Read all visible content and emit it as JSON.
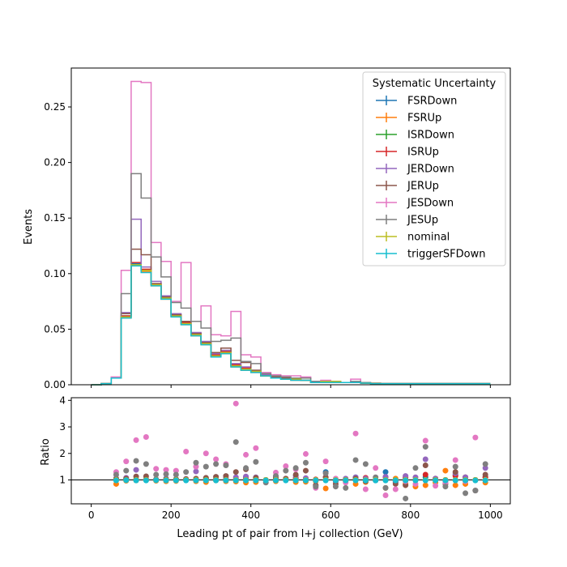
{
  "chart_data": [
    {
      "type": "line",
      "drawstyle": "steps",
      "ylabel": "Events",
      "ylim": [
        0,
        0.285
      ],
      "xlim": [
        -50,
        1050
      ],
      "yticks": [
        0.0,
        0.05,
        0.1,
        0.15,
        0.2,
        0.25
      ],
      "ytick_labels": [
        "0.00",
        "0.05",
        "0.10",
        "0.15",
        "0.20",
        "0.25"
      ],
      "legend_title": "Systematic Uncertainty",
      "legend_position": "upper right",
      "bin_edges": [
        0,
        25,
        50,
        75,
        100,
        125,
        150,
        175,
        200,
        225,
        250,
        275,
        300,
        325,
        350,
        375,
        400,
        425,
        450,
        475,
        500,
        525,
        550,
        575,
        600,
        625,
        650,
        675,
        700,
        725,
        750,
        775,
        800,
        825,
        850,
        875,
        900,
        925,
        950,
        975,
        1000
      ],
      "series": [
        {
          "name": "FSRDown",
          "color": "#1f77b4",
          "values": [
            0.0,
            0.001,
            0.006,
            0.062,
            0.109,
            0.103,
            0.09,
            0.078,
            0.062,
            0.055,
            0.045,
            0.037,
            0.026,
            0.029,
            0.017,
            0.014,
            0.012,
            0.008,
            0.006,
            0.005,
            0.005,
            0.004,
            0.002,
            0.003,
            0.003,
            0.002,
            0.002,
            0.0015,
            0.0012,
            0.001,
            0.001,
            0.001,
            0.001,
            0.001,
            0.001,
            0.001,
            0.001,
            0.001,
            0.001,
            0.001
          ]
        },
        {
          "name": "FSRUp",
          "color": "#ff7f0e",
          "values": [
            0.0,
            0.001,
            0.006,
            0.06,
            0.107,
            0.102,
            0.089,
            0.077,
            0.061,
            0.054,
            0.044,
            0.036,
            0.025,
            0.028,
            0.016,
            0.013,
            0.011,
            0.008,
            0.006,
            0.005,
            0.004,
            0.004,
            0.002,
            0.002,
            0.002,
            0.002,
            0.002,
            0.0015,
            0.001,
            0.001,
            0.001,
            0.001,
            0.001,
            0.001,
            0.001,
            0.001,
            0.001,
            0.001,
            0.001,
            0.001
          ]
        },
        {
          "name": "ISRDown",
          "color": "#2ca02c",
          "values": [
            0.0,
            0.001,
            0.006,
            0.061,
            0.108,
            0.103,
            0.09,
            0.078,
            0.062,
            0.055,
            0.045,
            0.037,
            0.026,
            0.029,
            0.017,
            0.014,
            0.012,
            0.008,
            0.006,
            0.005,
            0.005,
            0.004,
            0.002,
            0.003,
            0.003,
            0.002,
            0.002,
            0.0015,
            0.0012,
            0.001,
            0.001,
            0.001,
            0.001,
            0.001,
            0.001,
            0.001,
            0.001,
            0.001,
            0.001,
            0.001
          ]
        },
        {
          "name": "ISRUp",
          "color": "#d62728",
          "values": [
            0.0,
            0.001,
            0.006,
            0.062,
            0.11,
            0.104,
            0.091,
            0.079,
            0.063,
            0.056,
            0.046,
            0.038,
            0.027,
            0.03,
            0.018,
            0.015,
            0.012,
            0.008,
            0.006,
            0.005,
            0.005,
            0.004,
            0.002,
            0.003,
            0.003,
            0.002,
            0.002,
            0.0015,
            0.0012,
            0.001,
            0.001,
            0.001,
            0.001,
            0.001,
            0.001,
            0.001,
            0.001,
            0.001,
            0.001,
            0.001
          ]
        },
        {
          "name": "JERDown",
          "color": "#9467bd",
          "values": [
            0.0,
            0.001,
            0.006,
            0.065,
            0.149,
            0.106,
            0.093,
            0.08,
            0.064,
            0.057,
            0.047,
            0.039,
            0.028,
            0.031,
            0.019,
            0.016,
            0.013,
            0.009,
            0.007,
            0.006,
            0.005,
            0.004,
            0.002,
            0.003,
            0.003,
            0.002,
            0.002,
            0.0015,
            0.0012,
            0.001,
            0.001,
            0.001,
            0.001,
            0.001,
            0.001,
            0.001,
            0.001,
            0.001,
            0.001,
            0.001
          ]
        },
        {
          "name": "JERUp",
          "color": "#8c564b",
          "values": [
            0.0,
            0.001,
            0.006,
            0.064,
            0.122,
            0.117,
            0.091,
            0.079,
            0.063,
            0.057,
            0.046,
            0.038,
            0.029,
            0.033,
            0.022,
            0.02,
            0.013,
            0.008,
            0.007,
            0.006,
            0.005,
            0.004,
            0.002,
            0.003,
            0.003,
            0.002,
            0.002,
            0.0015,
            0.0012,
            0.001,
            0.001,
            0.001,
            0.001,
            0.001,
            0.001,
            0.001,
            0.001,
            0.001,
            0.001,
            0.001
          ]
        },
        {
          "name": "JESDown",
          "color": "#e377c2",
          "values": [
            0.0,
            0.001,
            0.007,
            0.103,
            0.273,
            0.272,
            0.128,
            0.111,
            0.075,
            0.11,
            0.057,
            0.071,
            0.045,
            0.044,
            0.066,
            0.027,
            0.025,
            0.011,
            0.009,
            0.008,
            0.008,
            0.007,
            0.003,
            0.004,
            0.003,
            0.002,
            0.005,
            0.002,
            0.0015,
            0.001,
            0.001,
            0.001,
            0.001,
            0.001,
            0.001,
            0.001,
            0.001,
            0.001,
            0.001,
            0.001
          ]
        },
        {
          "name": "JESUp",
          "color": "#7f7f7f",
          "values": [
            0.0,
            0.001,
            0.006,
            0.082,
            0.19,
            0.168,
            0.115,
            0.097,
            0.074,
            0.069,
            0.057,
            0.051,
            0.039,
            0.04,
            0.042,
            0.021,
            0.019,
            0.01,
            0.008,
            0.007,
            0.006,
            0.006,
            0.003,
            0.003,
            0.003,
            0.002,
            0.003,
            0.002,
            0.0015,
            0.001,
            0.001,
            0.001,
            0.001,
            0.001,
            0.001,
            0.001,
            0.001,
            0.001,
            0.001,
            0.001
          ]
        },
        {
          "name": "nominal",
          "color": "#bcbd22",
          "values": [
            0.0,
            0.001,
            0.006,
            0.061,
            0.108,
            0.103,
            0.09,
            0.078,
            0.062,
            0.055,
            0.045,
            0.037,
            0.026,
            0.029,
            0.017,
            0.014,
            0.012,
            0.008,
            0.006,
            0.005,
            0.005,
            0.004,
            0.002,
            0.003,
            0.003,
            0.002,
            0.002,
            0.0015,
            0.0012,
            0.001,
            0.001,
            0.001,
            0.001,
            0.001,
            0.001,
            0.001,
            0.001,
            0.001,
            0.001,
            0.001
          ]
        },
        {
          "name": "triggerSFDown",
          "color": "#17becf",
          "values": [
            0.0,
            0.001,
            0.006,
            0.06,
            0.107,
            0.101,
            0.089,
            0.077,
            0.061,
            0.054,
            0.044,
            0.036,
            0.025,
            0.028,
            0.016,
            0.013,
            0.011,
            0.008,
            0.006,
            0.005,
            0.004,
            0.004,
            0.002,
            0.002,
            0.002,
            0.002,
            0.002,
            0.0015,
            0.001,
            0.001,
            0.001,
            0.001,
            0.001,
            0.001,
            0.001,
            0.001,
            0.001,
            0.001,
            0.001,
            0.001
          ]
        }
      ]
    },
    {
      "type": "scatter",
      "ylabel": "Ratio",
      "xlabel": "Leading pt of pair from l+j collection (GeV)",
      "xlim": [
        -50,
        1050
      ],
      "ylim": [
        0.1,
        4.1
      ],
      "xticks": [
        0,
        200,
        400,
        600,
        800,
        1000
      ],
      "xtick_labels": [
        "0",
        "200",
        "400",
        "600",
        "800",
        "1000"
      ],
      "yticks": [
        1,
        2,
        3,
        4
      ],
      "ytick_labels": [
        "1",
        "2",
        "3",
        "4"
      ],
      "reference_line": 1,
      "x": [
        62.5,
        87.5,
        112.5,
        137.5,
        162.5,
        187.5,
        212.5,
        237.5,
        262.5,
        287.5,
        312.5,
        337.5,
        362.5,
        387.5,
        412.5,
        437.5,
        462.5,
        487.5,
        512.5,
        537.5,
        562.5,
        587.5,
        612.5,
        637.5,
        662.5,
        687.5,
        712.5,
        737.5,
        762.5,
        787.5,
        812.5,
        837.5,
        862.5,
        887.5,
        912.5,
        937.5,
        962.5,
        987.5
      ],
      "series": [
        {
          "name": "FSRDown",
          "color": "#1f77b4",
          "values": [
            1.02,
            1.05,
            1.01,
            1.0,
            1.02,
            1.05,
            1.03,
            1.0,
            1.02,
            1.06,
            1.0,
            1.03,
            1.02,
            1.1,
            1.04,
            0.98,
            1.03,
            1.0,
            1.06,
            1.05,
            1.0,
            1.3,
            0.95,
            1.0,
            1.1,
            1.05,
            0.98,
            1.3,
            0.9,
            1.05,
            1.0,
            1.1,
            1.05,
            0.95,
            1.2,
            1.1,
            1.0,
            1.1
          ]
        },
        {
          "name": "FSRUp",
          "color": "#ff7f0e",
          "values": [
            0.85,
            0.97,
            0.98,
            1.0,
            0.97,
            0.95,
            0.96,
            1.0,
            0.95,
            0.92,
            0.98,
            0.95,
            0.94,
            0.9,
            0.92,
            1.0,
            0.95,
            1.0,
            0.92,
            0.93,
            0.95,
            0.68,
            1.0,
            0.95,
            0.85,
            0.92,
            1.0,
            0.7,
            1.05,
            0.85,
            0.75,
            0.8,
            0.9,
            1.35,
            0.8,
            0.85,
            1.0,
            0.9
          ]
        },
        {
          "name": "ISRDown",
          "color": "#2ca02c",
          "values": [
            1.0,
            1.0,
            1.0,
            1.0,
            1.0,
            1.0,
            1.0,
            1.0,
            1.0,
            1.0,
            1.0,
            1.0,
            1.0,
            1.0,
            1.0,
            1.0,
            1.0,
            1.0,
            1.0,
            1.0,
            1.0,
            1.0,
            1.0,
            1.0,
            1.0,
            1.0,
            1.0,
            1.0,
            1.0,
            1.0,
            1.0,
            1.0,
            1.0,
            1.0,
            1.0,
            1.0,
            1.0,
            1.0
          ]
        },
        {
          "name": "ISRUp",
          "color": "#d62728",
          "values": [
            1.02,
            1.03,
            1.02,
            1.01,
            1.02,
            1.03,
            1.02,
            1.01,
            1.03,
            1.04,
            1.02,
            1.03,
            1.04,
            1.05,
            1.03,
            1.0,
            1.05,
            1.02,
            1.06,
            1.04,
            1.02,
            1.1,
            0.98,
            1.02,
            1.05,
            1.08,
            1.0,
            1.1,
            0.95,
            1.1,
            1.0,
            1.2,
            1.05,
            1.0,
            1.15,
            1.1,
            1.0,
            1.1
          ]
        },
        {
          "name": "JERDown",
          "color": "#9467bd",
          "values": [
            1.06,
            1.08,
            1.38,
            1.03,
            1.03,
            1.02,
            1.03,
            1.04,
            1.32,
            1.04,
            1.05,
            1.07,
            1.1,
            1.13,
            1.1,
            1.0,
            1.12,
            1.05,
            1.15,
            1.07,
            1.0,
            1.1,
            0.95,
            1.05,
            1.1,
            1.05,
            1.0,
            1.12,
            0.95,
            1.15,
            1.1,
            1.78,
            1.05,
            1.0,
            1.25,
            1.1,
            1.0,
            1.45
          ]
        },
        {
          "name": "JERUp",
          "color": "#8c564b",
          "values": [
            1.04,
            1.05,
            1.13,
            1.14,
            1.01,
            1.01,
            1.02,
            1.03,
            1.05,
            1.08,
            1.12,
            1.15,
            1.3,
            1.4,
            1.08,
            1.0,
            1.1,
            1.05,
            1.2,
            1.35,
            0.8,
            1.1,
            0.85,
            1.0,
            1.05,
            0.95,
            1.0,
            1.0,
            0.85,
            0.8,
            1.0,
            1.55,
            1.0,
            0.85,
            1.3,
            1.0,
            0.6,
            1.2
          ]
        },
        {
          "name": "JESDown",
          "color": "#e377c2",
          "values": [
            1.3,
            1.7,
            2.5,
            2.62,
            1.42,
            1.38,
            1.35,
            2.07,
            1.5,
            2.0,
            1.78,
            1.6,
            3.88,
            1.95,
            2.2,
            1.0,
            1.28,
            1.52,
            1.4,
            1.98,
            0.7,
            1.7,
            1.05,
            0.9,
            2.75,
            0.65,
            1.45,
            0.42,
            0.65,
            0.95,
            0.85,
            2.48,
            0.78,
            0.9,
            1.75,
            0.95,
            2.6,
            1.0
          ]
        },
        {
          "name": "JESUp",
          "color": "#7f7f7f",
          "values": [
            1.2,
            1.35,
            1.72,
            1.6,
            1.2,
            1.22,
            1.2,
            1.3,
            1.65,
            1.5,
            1.6,
            1.55,
            2.43,
            1.45,
            1.68,
            0.9,
            1.15,
            1.35,
            1.45,
            1.65,
            0.75,
            1.25,
            0.75,
            0.7,
            1.75,
            1.6,
            1.1,
            0.7,
            1.0,
            0.3,
            1.45,
            2.25,
            1.0,
            0.75,
            1.5,
            0.5,
            0.6,
            1.6
          ]
        },
        {
          "name": "nominal",
          "color": "#bcbd22",
          "values": [
            1.0,
            1.0,
            1.0,
            1.0,
            1.0,
            1.0,
            1.0,
            1.0,
            1.0,
            1.0,
            1.0,
            1.0,
            1.0,
            1.0,
            1.0,
            1.0,
            1.0,
            1.0,
            1.0,
            1.0,
            1.0,
            1.0,
            1.0,
            1.0,
            1.0,
            1.0,
            1.0,
            1.0,
            1.0,
            1.0,
            1.0,
            1.0,
            1.0,
            1.0,
            1.0,
            1.0,
            1.0,
            1.0
          ]
        },
        {
          "name": "triggerSFDown",
          "color": "#17becf",
          "values": [
            0.98,
            0.99,
            0.98,
            0.98,
            0.99,
            0.98,
            0.98,
            0.98,
            0.98,
            0.98,
            0.98,
            0.98,
            0.98,
            0.98,
            0.98,
            0.98,
            0.98,
            0.98,
            0.98,
            0.98,
            0.98,
            0.98,
            0.98,
            0.98,
            0.98,
            0.98,
            0.98,
            0.98,
            0.98,
            0.98,
            0.98,
            0.98,
            0.98,
            0.98,
            0.98,
            0.98,
            0.98,
            0.98
          ]
        }
      ]
    }
  ]
}
